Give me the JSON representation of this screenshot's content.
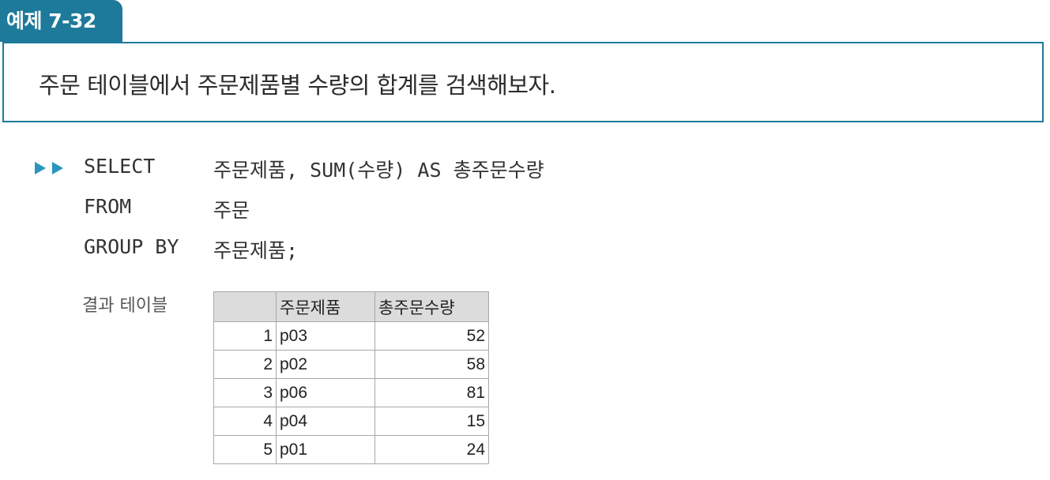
{
  "example": {
    "tab_label": "예제 7-32",
    "problem": "주문 테이블에서 주문제품별 수량의 합계를 검색해보자."
  },
  "code": {
    "icon": "double-play-arrow-icon",
    "lines": [
      {
        "keyword": "SELECT",
        "argument": "주문제품, SUM(수량) AS 총주문수량"
      },
      {
        "keyword": "FROM",
        "argument": "주문"
      },
      {
        "keyword": "GROUP BY",
        "argument": "주문제품;"
      }
    ]
  },
  "result": {
    "label": "결과 테이블",
    "columns": [
      "",
      "주문제품",
      "총주문수량"
    ],
    "rows": [
      {
        "idx": "1",
        "product": "p03",
        "qty": "52"
      },
      {
        "idx": "2",
        "product": "p02",
        "qty": "58"
      },
      {
        "idx": "3",
        "product": "p06",
        "qty": "81"
      },
      {
        "idx": "4",
        "product": "p04",
        "qty": "15"
      },
      {
        "idx": "5",
        "product": "p01",
        "qty": "24"
      }
    ]
  },
  "colors": {
    "accent": "#1d7a9a",
    "header_bg": "#dcdcdc"
  }
}
